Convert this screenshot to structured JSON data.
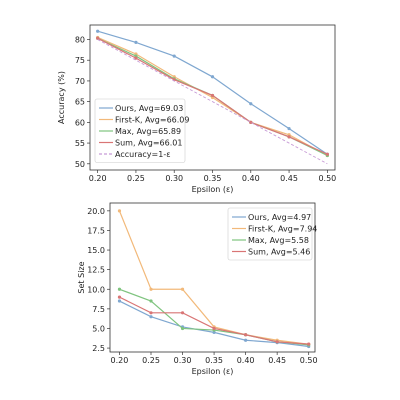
{
  "chart_data": [
    {
      "type": "line",
      "xlabel": "Epsilon (ε)",
      "ylabel": "Accuracy (%)",
      "xlim": [
        0.19,
        0.51
      ],
      "ylim": [
        48.5,
        83.5
      ],
      "xticks": [
        0.2,
        0.25,
        0.3,
        0.35,
        0.4,
        0.45,
        0.5
      ],
      "xtick_labels": [
        "0.20",
        "0.25",
        "0.30",
        "0.35",
        "0.40",
        "0.45",
        "0.50"
      ],
      "yticks": [
        50,
        55,
        60,
        65,
        70,
        75,
        80
      ],
      "ytick_labels": [
        "50",
        "55",
        "60",
        "65",
        "70",
        "75",
        "80"
      ],
      "x": [
        0.2,
        0.25,
        0.3,
        0.35,
        0.4,
        0.45,
        0.5
      ],
      "grid": false,
      "legend_position": "lower-left",
      "series": [
        {
          "name": "Ours, Avg=69.03",
          "color": "#7fa7d0",
          "values": [
            82.0,
            79.3,
            76.0,
            71.0,
            64.5,
            58.5,
            52.3
          ],
          "markers": true
        },
        {
          "name": "First-K, Avg=66.09",
          "color": "#f2b97a",
          "values": [
            80.5,
            76.5,
            71.0,
            66.0,
            60.0,
            57.0,
            52.0
          ],
          "markers": true
        },
        {
          "name": "Max, Avg=65.89",
          "color": "#7fc47f",
          "values": [
            80.3,
            76.0,
            70.5,
            66.5,
            60.0,
            56.5,
            52.0
          ],
          "markers": true
        },
        {
          "name": "Sum, Avg=66.01",
          "color": "#d97575",
          "values": [
            80.3,
            75.5,
            70.3,
            66.5,
            60.0,
            56.5,
            52.3
          ],
          "markers": true
        },
        {
          "name": "Accuracy=1-ε",
          "color": "#c79bd6",
          "values": [
            80,
            75,
            70,
            65,
            60,
            55,
            50
          ],
          "markers": false,
          "dashed": true
        }
      ]
    },
    {
      "type": "line",
      "xlabel": "Epsilon (ε)",
      "ylabel": "Set Size",
      "xlim": [
        0.185,
        0.51
      ],
      "ylim": [
        2.0,
        21.0
      ],
      "xticks": [
        0.2,
        0.25,
        0.3,
        0.35,
        0.4,
        0.45,
        0.5
      ],
      "xtick_labels": [
        "0.20",
        "0.25",
        "0.30",
        "0.35",
        "0.40",
        "0.45",
        "0.50"
      ],
      "yticks": [
        2.5,
        5.0,
        7.5,
        10.0,
        12.5,
        15.0,
        17.5,
        20.0
      ],
      "ytick_labels": [
        "2.5",
        "5.0",
        "7.5",
        "10.0",
        "12.5",
        "15.0",
        "17.5",
        "20.0"
      ],
      "x": [
        0.2,
        0.25,
        0.3,
        0.35,
        0.4,
        0.45,
        0.5
      ],
      "grid": false,
      "legend_position": "top-right",
      "series": [
        {
          "name": "Ours, Avg=4.97",
          "color": "#7fa7d0",
          "values": [
            8.5,
            6.5,
            5.2,
            4.5,
            3.5,
            3.2,
            2.7
          ],
          "markers": true
        },
        {
          "name": "First-K, Avg=7.94",
          "color": "#f2b97a",
          "values": [
            20.0,
            10.0,
            10.0,
            5.2,
            4.2,
            3.5,
            3.0
          ],
          "markers": true
        },
        {
          "name": "Max, Avg=5.58",
          "color": "#7fc47f",
          "values": [
            10.0,
            8.5,
            5.0,
            4.8,
            4.2,
            3.3,
            2.9
          ],
          "markers": true
        },
        {
          "name": "Sum,  Avg=5.46",
          "color": "#d97575",
          "values": [
            9.0,
            7.0,
            7.0,
            5.0,
            4.2,
            3.3,
            3.0
          ],
          "markers": true
        }
      ]
    }
  ]
}
